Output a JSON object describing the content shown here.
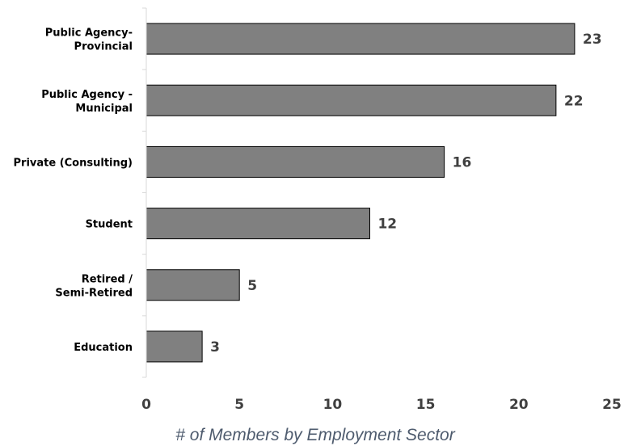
{
  "chart_data": {
    "type": "bar",
    "orientation": "horizontal",
    "categories": [
      [
        "Public Agency-",
        "Provincial"
      ],
      [
        "Public Agency -",
        "Municipal"
      ],
      [
        "Private (Consulting)"
      ],
      [
        "Student"
      ],
      [
        "Retired /",
        "Semi-Retired"
      ],
      [
        "Education"
      ]
    ],
    "values": [
      23,
      22,
      16,
      12,
      5,
      3
    ],
    "data_labels": [
      "23",
      "22",
      "16",
      "12",
      "5",
      "3"
    ],
    "xticks": [
      "0",
      "5",
      "10",
      "15",
      "20",
      "25"
    ],
    "xlim": [
      0,
      25
    ],
    "xlabel": "# of Members by Employment Sector",
    "grid": false,
    "legend": "none",
    "colors": {
      "bar_fill": "#808080",
      "bar_stroke": "#000000",
      "axis": "#d9d9d9",
      "category_text": "#000000",
      "value_text": "#404040",
      "xlabel_text": "#4e5b6e"
    }
  }
}
